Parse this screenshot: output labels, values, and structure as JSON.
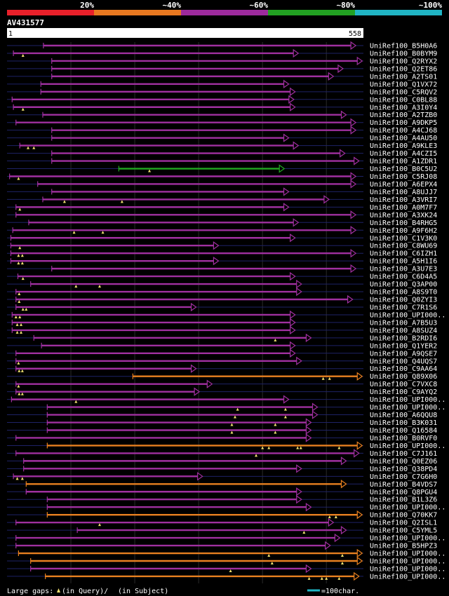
{
  "chart_data": {
    "type": "alignment",
    "title": "AV431577",
    "query_length": 558,
    "axis_start_label": "1",
    "axis_end_label": "558",
    "identity_scale": [
      {
        "label": "20%",
        "color": "#e8202a"
      },
      {
        "label": "~40%",
        "color": "#e87820"
      },
      {
        "label": "~60%",
        "color": "#9c2a9c"
      },
      {
        "label": "~80%",
        "color": "#22a022"
      },
      {
        "label": "~100%",
        "color": "#20b4c4"
      }
    ],
    "category_colors": {
      "magenta": "#a030a0",
      "green": "#22a822",
      "orange": "#e88020"
    },
    "hits": [
      {
        "label": "UniRef100_B5H0A6",
        "start": 57,
        "end": 545,
        "c": "magenta",
        "g": []
      },
      {
        "label": "UniRef100_B0BYM9",
        "start": 10,
        "end": 455,
        "c": "magenta",
        "g": [
          25
        ]
      },
      {
        "label": "UniRef100_Q2RYX2",
        "start": 70,
        "end": 555,
        "c": "magenta",
        "g": []
      },
      {
        "label": "UniRef100_Q2ET86",
        "start": 70,
        "end": 525,
        "c": "magenta",
        "g": []
      },
      {
        "label": "UniRef100_A2TS01",
        "start": 70,
        "end": 510,
        "c": "magenta",
        "g": []
      },
      {
        "label": "UniRef100_Q1VX72",
        "start": 53,
        "end": 440,
        "c": "magenta",
        "g": []
      },
      {
        "label": "UniRef100_C5RQV2",
        "start": 53,
        "end": 450,
        "c": "magenta",
        "g": []
      },
      {
        "label": "UniRef100_C0BL88",
        "start": 8,
        "end": 448,
        "c": "magenta",
        "g": []
      },
      {
        "label": "UniRef100_A3I0Y4",
        "start": 10,
        "end": 450,
        "c": "magenta",
        "g": [
          25
        ]
      },
      {
        "label": "UniRef100_A2TZB0",
        "start": 56,
        "end": 530,
        "c": "magenta",
        "g": []
      },
      {
        "label": "UniRef100_A9DKP5",
        "start": 14,
        "end": 545,
        "c": "magenta",
        "g": []
      },
      {
        "label": "UniRef100_A4CJ68",
        "start": 70,
        "end": 545,
        "c": "magenta",
        "g": []
      },
      {
        "label": "UniRef100_A4AU50",
        "start": 70,
        "end": 440,
        "c": "magenta",
        "g": []
      },
      {
        "label": "UniRef100_A9KLE3",
        "start": 20,
        "end": 455,
        "c": "magenta",
        "g": [
          33,
          42
        ]
      },
      {
        "label": "UniRef100_A4CZI5",
        "start": 70,
        "end": 528,
        "c": "magenta",
        "g": []
      },
      {
        "label": "UniRef100_A1ZDR1",
        "start": 70,
        "end": 550,
        "c": "magenta",
        "g": []
      },
      {
        "label": "UniRef100_B0C5U2",
        "start": 175,
        "end": 433,
        "c": "green",
        "g": [
          223
        ]
      },
      {
        "label": "UniRef100_C5RJ08",
        "start": 4,
        "end": 545,
        "c": "magenta",
        "g": [
          18
        ]
      },
      {
        "label": "UniRef100_A6EPX4",
        "start": 48,
        "end": 545,
        "c": "magenta",
        "g": []
      },
      {
        "label": "UniRef100_A8UJJ7",
        "start": 70,
        "end": 440,
        "c": "magenta",
        "g": []
      },
      {
        "label": "UniRef100_A3VRI7",
        "start": 56,
        "end": 503,
        "c": "magenta",
        "g": [
          90,
          180
        ]
      },
      {
        "label": "UniRef100_A0M7F7",
        "start": 14,
        "end": 440,
        "c": "magenta",
        "g": [
          20
        ]
      },
      {
        "label": "UniRef100_A3XK24",
        "start": 14,
        "end": 545,
        "c": "magenta",
        "g": []
      },
      {
        "label": "UniRef100_B4RHG5",
        "start": 34,
        "end": 455,
        "c": "magenta",
        "g": []
      },
      {
        "label": "UniRef100_A9F6H2",
        "start": 9,
        "end": 545,
        "c": "magenta",
        "g": [
          105,
          150
        ]
      },
      {
        "label": "UniRef100_C1V3K0",
        "start": 6,
        "end": 450,
        "c": "magenta",
        "g": []
      },
      {
        "label": "UniRef100_C8WU69",
        "start": 6,
        "end": 330,
        "c": "magenta",
        "g": [
          20
        ]
      },
      {
        "label": "UniRef100_C6IZH1",
        "start": 6,
        "end": 545,
        "c": "magenta",
        "g": [
          18,
          24
        ]
      },
      {
        "label": "UniRef100_A5H1I6",
        "start": 6,
        "end": 330,
        "c": "magenta",
        "g": [
          18,
          24
        ]
      },
      {
        "label": "UniRef100_A3U7E3",
        "start": 70,
        "end": 545,
        "c": "magenta",
        "g": []
      },
      {
        "label": "UniRef100_C6D4A5",
        "start": 17,
        "end": 450,
        "c": "magenta",
        "g": [
          25
        ]
      },
      {
        "label": "UniRef100_Q3AP00",
        "start": 37,
        "end": 460,
        "c": "magenta",
        "g": [
          108,
          145
        ]
      },
      {
        "label": "UniRef100_A8S9T0",
        "start": 14,
        "end": 460,
        "c": "magenta",
        "g": [
          19
        ]
      },
      {
        "label": "UniRef100_Q0ZYI3",
        "start": 14,
        "end": 540,
        "c": "magenta",
        "g": [
          19
        ]
      },
      {
        "label": "UniRef100_C7R1S6",
        "start": 14,
        "end": 295,
        "c": "magenta",
        "g": [
          25,
          30
        ]
      },
      {
        "label": "UniRef100_UPI000..",
        "start": 8,
        "end": 450,
        "c": "magenta",
        "g": [
          14,
          20
        ]
      },
      {
        "label": "UniRef100_A7B5U3",
        "start": 8,
        "end": 450,
        "c": "magenta",
        "g": [
          16,
          22
        ]
      },
      {
        "label": "UniRef100_A8SUZ4",
        "start": 8,
        "end": 450,
        "c": "magenta",
        "g": [
          16,
          22
        ]
      },
      {
        "label": "UniRef100_B2RDI6",
        "start": 42,
        "end": 475,
        "c": "magenta",
        "g": [
          420
        ]
      },
      {
        "label": "UniRef100_Q1YER2",
        "start": 54,
        "end": 450,
        "c": "magenta",
        "g": []
      },
      {
        "label": "UniRef100_A9QSE7",
        "start": 14,
        "end": 450,
        "c": "magenta",
        "g": []
      },
      {
        "label": "UniRef100_Q4UQS7",
        "start": 14,
        "end": 460,
        "c": "magenta",
        "g": [
          18
        ]
      },
      {
        "label": "UniRef100_C9AA64",
        "start": 14,
        "end": 295,
        "c": "magenta",
        "g": [
          19,
          24
        ]
      },
      {
        "label": "UniRef100_Q89X06",
        "start": 197,
        "end": 555,
        "c": "orange",
        "g": [
          495,
          505
        ]
      },
      {
        "label": "UniRef100_C7VXC8",
        "start": 14,
        "end": 320,
        "c": "magenta",
        "g": [
          18
        ]
      },
      {
        "label": "UniRef100_C9AYQ2",
        "start": 14,
        "end": 300,
        "c": "magenta",
        "g": [
          19,
          24
        ]
      },
      {
        "label": "UniRef100_UPI000..",
        "start": 7,
        "end": 440,
        "c": "magenta",
        "g": [
          108
        ]
      },
      {
        "label": "UniRef100_UPI000..",
        "start": 63,
        "end": 485,
        "c": "magenta",
        "g": [
          361,
          436
        ]
      },
      {
        "label": "UniRef100_A6QQU8",
        "start": 63,
        "end": 485,
        "c": "magenta",
        "g": [
          357,
          436
        ]
      },
      {
        "label": "UniRef100_B3K031",
        "start": 63,
        "end": 475,
        "c": "magenta",
        "g": [
          352,
          420
        ]
      },
      {
        "label": "UniRef100_Q16584",
        "start": 63,
        "end": 475,
        "c": "magenta",
        "g": [
          352,
          420
        ]
      },
      {
        "label": "UniRef100_B0RVF0",
        "start": 14,
        "end": 475,
        "c": "magenta",
        "g": []
      },
      {
        "label": "UniRef100_UPI000..",
        "start": 63,
        "end": 555,
        "c": "orange",
        "g": [
          400,
          410,
          455,
          460,
          520
        ]
      },
      {
        "label": "UniRef100_C7J161",
        "start": 14,
        "end": 550,
        "c": "magenta",
        "g": [
          390
        ]
      },
      {
        "label": "UniRef100_Q0EZ06",
        "start": 26,
        "end": 530,
        "c": "magenta",
        "g": []
      },
      {
        "label": "UniRef100_Q38PD4",
        "start": 26,
        "end": 460,
        "c": "magenta",
        "g": []
      },
      {
        "label": "UniRef100_C7G6H0",
        "start": 10,
        "end": 305,
        "c": "magenta",
        "g": [
          16,
          24
        ]
      },
      {
        "label": "UniRef100_B4VDS7",
        "start": 30,
        "end": 530,
        "c": "orange",
        "g": []
      },
      {
        "label": "UniRef100_Q8PGU4",
        "start": 30,
        "end": 460,
        "c": "magenta",
        "g": []
      },
      {
        "label": "UniRef100_B1L3Z6",
        "start": 63,
        "end": 460,
        "c": "magenta",
        "g": []
      },
      {
        "label": "UniRef100_UPI000..",
        "start": 63,
        "end": 475,
        "c": "magenta",
        "g": []
      },
      {
        "label": "UniRef100_Q70KK7",
        "start": 63,
        "end": 555,
        "c": "orange",
        "g": [
          505,
          515
        ]
      },
      {
        "label": "UniRef100_Q2ISL1",
        "start": 14,
        "end": 510,
        "c": "magenta",
        "g": [
          145
        ]
      },
      {
        "label": "UniRef100_C5YML5",
        "start": 110,
        "end": 530,
        "c": "magenta",
        "g": [
          465
        ]
      },
      {
        "label": "UniRef100_UPI000..",
        "start": 14,
        "end": 520,
        "c": "magenta",
        "g": []
      },
      {
        "label": "UniRef100_B5HPZ3",
        "start": 14,
        "end": 505,
        "c": "magenta",
        "g": []
      },
      {
        "label": "UniRef100_UPI000..",
        "start": 18,
        "end": 555,
        "c": "orange",
        "g": [
          410,
          525
        ]
      },
      {
        "label": "UniRef100_UPI000..",
        "start": 37,
        "end": 555,
        "c": "orange",
        "g": [
          415,
          525
        ]
      },
      {
        "label": "UniRef100_UPI000..",
        "start": 37,
        "end": 475,
        "c": "magenta",
        "g": [
          350
        ]
      },
      {
        "label": "UniRef100_UPI000..",
        "start": 60,
        "end": 550,
        "c": "orange",
        "g": [
          473,
          493,
          500,
          520
        ]
      }
    ],
    "legend": {
      "gaps_text": "Large gaps: ",
      "query_text": "(in Query)/",
      "subject_text": "(in Subject)",
      "scale_text": "=100char."
    }
  }
}
